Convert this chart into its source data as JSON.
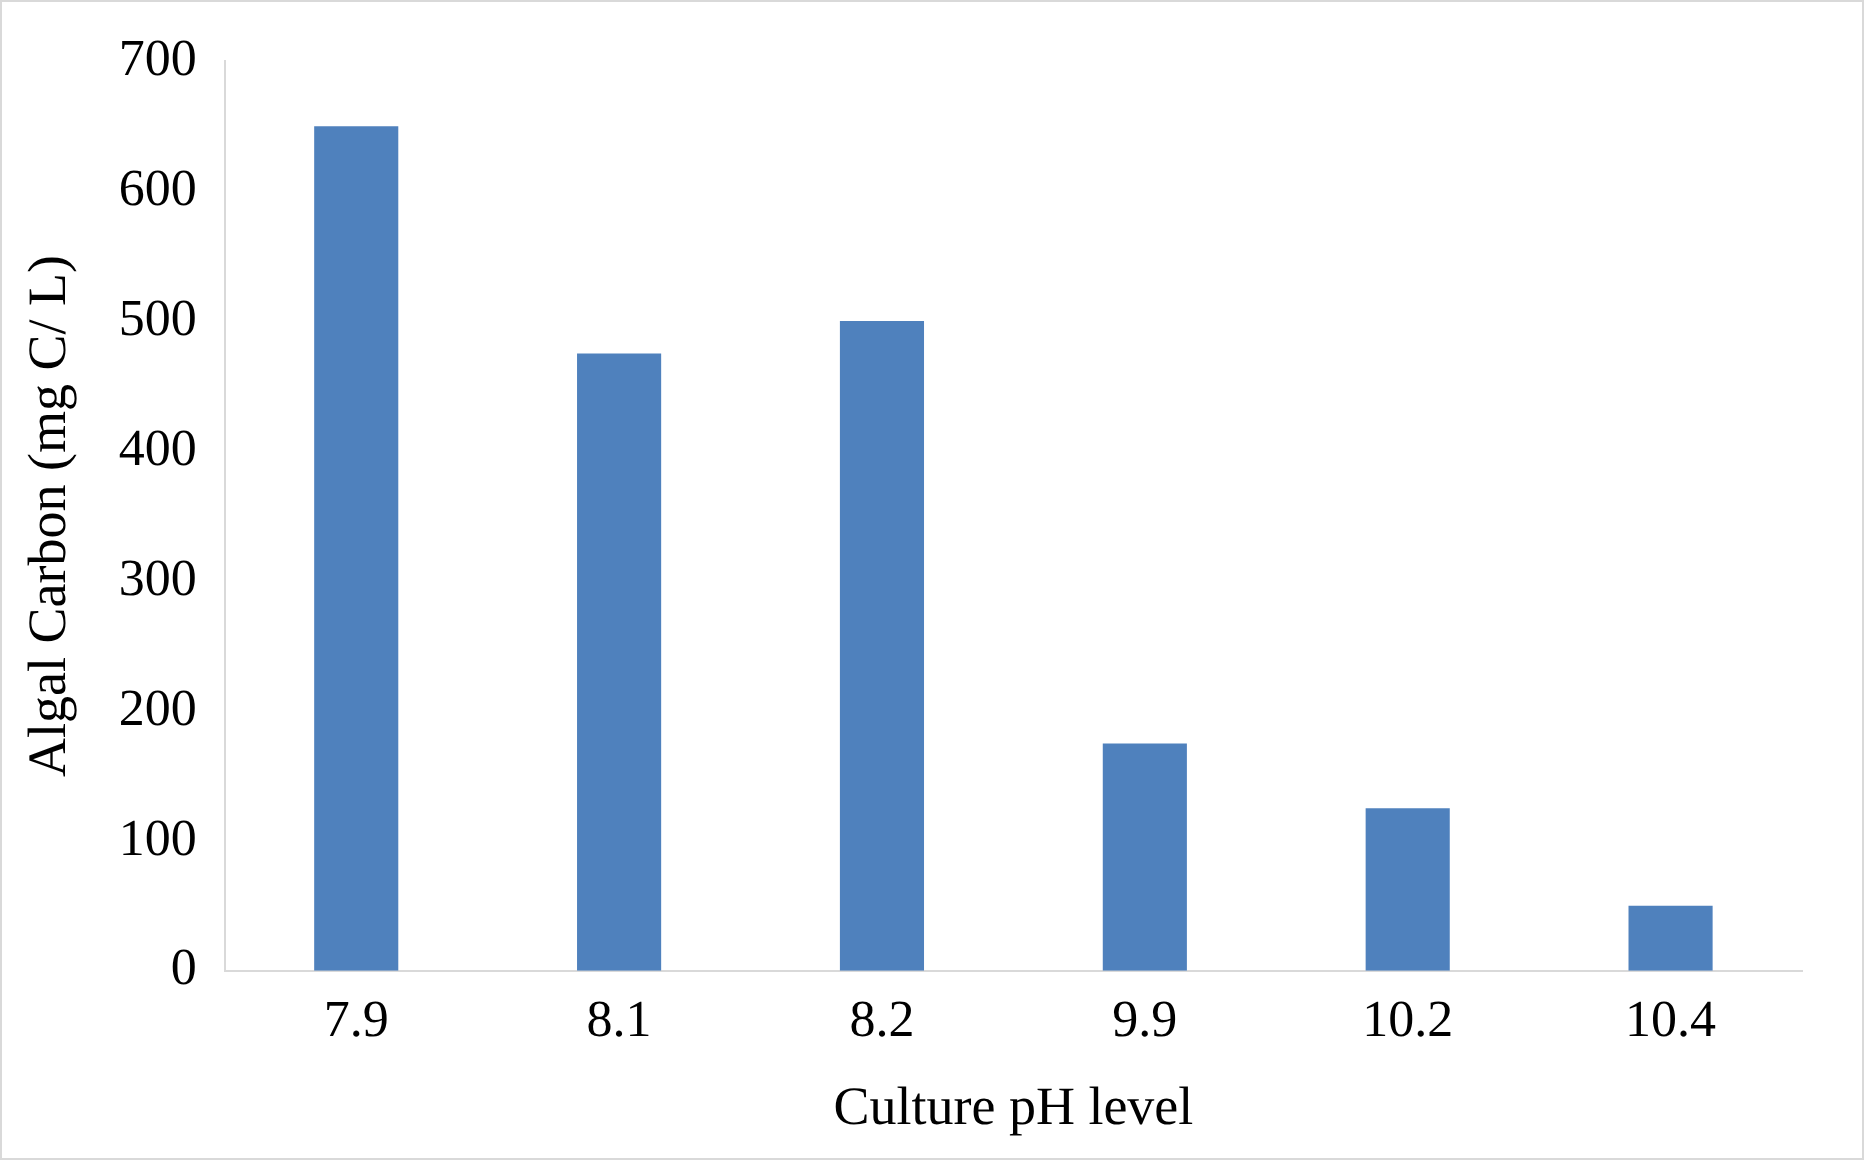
{
  "chart_data": {
    "type": "bar",
    "xlabel": "Culture pH level",
    "ylabel": "Algal Carbon (mg C/ L)",
    "categories": [
      "7.9",
      "8.1",
      "8.2",
      "9.9",
      "10.2",
      "10.4"
    ],
    "values": [
      650,
      475,
      500,
      175,
      125,
      50
    ],
    "color": "#4f81bd",
    "ylim": [
      0,
      700
    ],
    "yticks": [
      0,
      100,
      200,
      300,
      400,
      500,
      600,
      700
    ],
    "grid": false,
    "legend": false
  }
}
